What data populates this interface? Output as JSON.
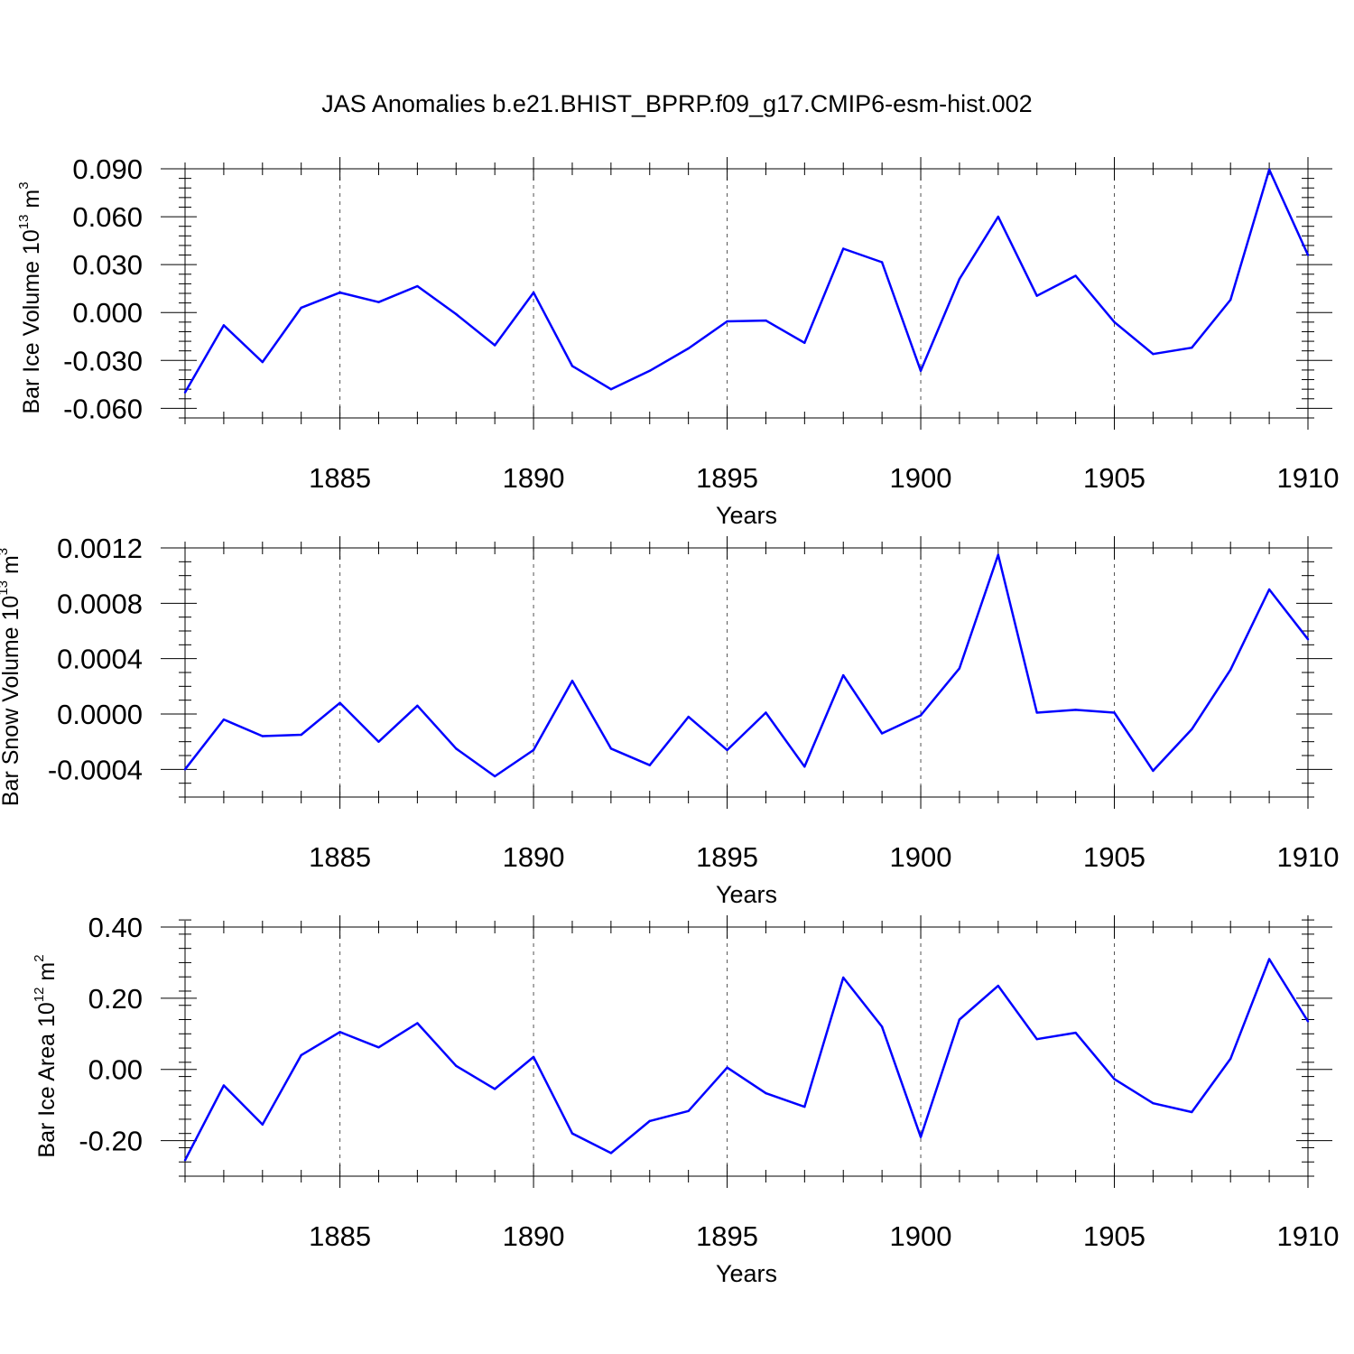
{
  "title": "JAS Anomalies b.e21.BHIST_BPRP.f09_g17.CMIP6-esm-hist.002",
  "chart_data": [
    {
      "type": "line",
      "title": "",
      "xlabel": "Years",
      "ylabel": {
        "prefix": "Bar Ice Volume 10",
        "exp": "13",
        "unit": " m",
        "unit_exp": "3"
      },
      "xlim": [
        1881,
        1910
      ],
      "ylim": [
        -0.066,
        0.09
      ],
      "xticks": [
        1885,
        1890,
        1895,
        1900,
        1905,
        1910
      ],
      "yticks": [
        -0.06,
        -0.03,
        0.0,
        0.03,
        0.06,
        0.09
      ],
      "ytick_labels": [
        "-0.060",
        "-0.030",
        "0.000",
        "0.030",
        "0.060",
        "0.090"
      ],
      "y_minor_step": 0.006,
      "grid": "vertical dashed",
      "color": "#0000ff",
      "x": [
        1881,
        1882,
        1883,
        1884,
        1885,
        1886,
        1887,
        1888,
        1889,
        1890,
        1891,
        1892,
        1893,
        1894,
        1895,
        1896,
        1897,
        1898,
        1899,
        1900,
        1901,
        1902,
        1903,
        1904,
        1905,
        1906,
        1907,
        1908,
        1909,
        1910
      ],
      "values": [
        -0.05,
        -0.008,
        -0.031,
        0.003,
        0.0125,
        0.0065,
        0.0165,
        -0.001,
        -0.0205,
        0.0125,
        -0.0335,
        -0.048,
        -0.0365,
        -0.0225,
        -0.0055,
        -0.005,
        -0.019,
        0.04,
        0.0315,
        -0.0365,
        0.021,
        0.06,
        0.0105,
        0.023,
        -0.006,
        -0.026,
        -0.022,
        0.008,
        0.0895,
        0.036
      ]
    },
    {
      "type": "line",
      "title": "",
      "xlabel": "Years",
      "ylabel": {
        "prefix": "Bar Snow Volume 10",
        "exp": "13",
        "unit": " m",
        "unit_exp": "3"
      },
      "xlim": [
        1881,
        1910
      ],
      "ylim": [
        -0.0006,
        0.0012
      ],
      "xticks": [
        1885,
        1890,
        1895,
        1900,
        1905,
        1910
      ],
      "yticks": [
        -0.0004,
        0.0,
        0.0004,
        0.0008,
        0.0012
      ],
      "ytick_labels": [
        "-0.0004",
        "0.0000",
        "0.0004",
        "0.0008",
        "0.0012"
      ],
      "y_minor_step": 0.0001,
      "grid": "vertical dashed",
      "color": "#0000ff",
      "x": [
        1881,
        1882,
        1883,
        1884,
        1885,
        1886,
        1887,
        1888,
        1889,
        1890,
        1891,
        1892,
        1893,
        1894,
        1895,
        1896,
        1897,
        1898,
        1899,
        1900,
        1901,
        1902,
        1903,
        1904,
        1905,
        1906,
        1907,
        1908,
        1909,
        1910
      ],
      "values": [
        -0.0004,
        -4e-05,
        -0.00016,
        -0.00015,
        8e-05,
        -0.0002,
        6e-05,
        -0.00025,
        -0.00045,
        -0.00026,
        0.00024,
        -0.00025,
        -0.00037,
        -2e-05,
        -0.00026,
        1e-05,
        -0.00038,
        0.00028,
        -0.00014,
        -1e-05,
        0.00033,
        0.00115,
        1e-05,
        3e-05,
        1e-05,
        -0.00041,
        -0.00011,
        0.00032,
        0.0009,
        0.00054
      ]
    },
    {
      "type": "line",
      "title": "",
      "xlabel": "Years",
      "ylabel": {
        "prefix": "Bar Ice Area 10",
        "exp": "12",
        "unit": " m",
        "unit_exp": "2"
      },
      "xlim": [
        1881,
        1910
      ],
      "ylim": [
        -0.3,
        0.4
      ],
      "xticks": [
        1885,
        1890,
        1895,
        1900,
        1905,
        1910
      ],
      "yticks": [
        -0.2,
        0.0,
        0.2,
        0.4
      ],
      "ytick_labels": [
        "-0.20",
        "0.00",
        "0.20",
        "0.40"
      ],
      "y_minor_step": 0.04,
      "grid": "vertical dashed",
      "color": "#0000ff",
      "x": [
        1881,
        1882,
        1883,
        1884,
        1885,
        1886,
        1887,
        1888,
        1889,
        1890,
        1891,
        1892,
        1893,
        1894,
        1895,
        1896,
        1897,
        1898,
        1899,
        1900,
        1901,
        1902,
        1903,
        1904,
        1905,
        1906,
        1907,
        1908,
        1909,
        1910
      ],
      "values": [
        -0.255,
        -0.045,
        -0.155,
        0.04,
        0.105,
        0.062,
        0.13,
        0.01,
        -0.055,
        0.035,
        -0.18,
        -0.235,
        -0.145,
        -0.117,
        0.005,
        -0.067,
        -0.105,
        0.258,
        0.12,
        -0.19,
        0.14,
        0.235,
        0.085,
        0.103,
        -0.027,
        -0.095,
        -0.12,
        0.03,
        0.31,
        0.135
      ]
    }
  ]
}
